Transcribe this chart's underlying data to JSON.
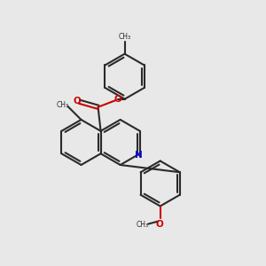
{
  "background_color": "#e8e8e8",
  "bond_color": "#2a2a2a",
  "double_bond_color": "#2a2a2a",
  "N_color": "#0000cc",
  "O_color": "#cc0000",
  "lw": 1.5,
  "figsize": [
    3.0,
    3.0
  ],
  "dpi": 100,
  "xlim": [
    0,
    10
  ],
  "ylim": [
    0,
    10
  ]
}
